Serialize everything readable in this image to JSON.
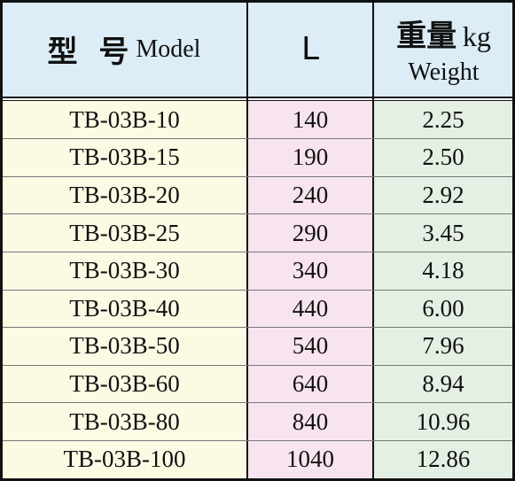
{
  "header": {
    "model_cn": "型 号",
    "model_en": "Model",
    "length": "L",
    "weight_cn": "重量",
    "weight_unit": "kg",
    "weight_en": "Weight"
  },
  "table": {
    "rows": [
      [
        "TB-03B-10",
        "140",
        "2.25"
      ],
      [
        "TB-03B-15",
        "190",
        "2.50"
      ],
      [
        "TB-03B-20",
        "240",
        "2.92"
      ],
      [
        "TB-03B-25",
        "290",
        "3.45"
      ],
      [
        "TB-03B-30",
        "340",
        "4.18"
      ],
      [
        "TB-03B-40",
        "440",
        "6.00"
      ],
      [
        "TB-03B-50",
        "540",
        "7.96"
      ],
      [
        "TB-03B-60",
        "640",
        "8.94"
      ],
      [
        "TB-03B-80",
        "840",
        "10.96"
      ],
      [
        "TB-03B-100",
        "1040",
        "12.86"
      ]
    ]
  }
}
